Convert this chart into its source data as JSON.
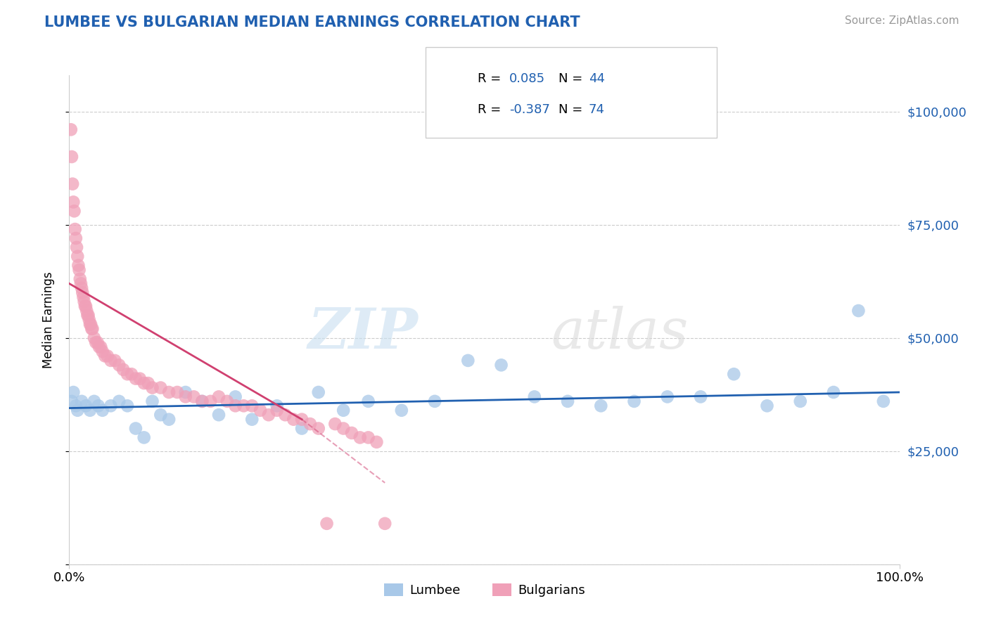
{
  "title": "LUMBEE VS BULGARIAN MEDIAN EARNINGS CORRELATION CHART",
  "source": "Source: ZipAtlas.com",
  "ylabel": "Median Earnings",
  "legend1_label": "Lumbee",
  "legend2_label": "Bulgarians",
  "r_lumbee": 0.085,
  "n_lumbee": 44,
  "r_bulgarian": -0.387,
  "n_bulgarian": 74,
  "lumbee_color": "#a8c8e8",
  "bulgarian_color": "#f0a0b8",
  "lumbee_line_color": "#2060b0",
  "bulgarian_line_color": "#d04070",
  "title_color": "#2060b0",
  "source_color": "#999999",
  "lumbee_x": [
    0.3,
    0.5,
    0.8,
    1.0,
    1.5,
    2.0,
    2.5,
    3.0,
    3.5,
    4.0,
    5.0,
    6.0,
    7.0,
    8.0,
    9.0,
    10.0,
    11.0,
    12.0,
    14.0,
    16.0,
    18.0,
    20.0,
    22.0,
    25.0,
    28.0,
    30.0,
    33.0,
    36.0,
    40.0,
    44.0,
    48.0,
    52.0,
    56.0,
    60.0,
    64.0,
    68.0,
    72.0,
    76.0,
    80.0,
    84.0,
    88.0,
    92.0,
    95.0,
    98.0
  ],
  "lumbee_y": [
    36000,
    38000,
    35000,
    34000,
    36000,
    35000,
    34000,
    36000,
    35000,
    34000,
    35000,
    36000,
    35000,
    30000,
    28000,
    36000,
    33000,
    32000,
    38000,
    36000,
    33000,
    37000,
    32000,
    35000,
    30000,
    38000,
    34000,
    36000,
    34000,
    36000,
    45000,
    44000,
    37000,
    36000,
    35000,
    36000,
    37000,
    37000,
    42000,
    35000,
    36000,
    38000,
    56000,
    36000
  ],
  "bulgarian_x": [
    0.2,
    0.3,
    0.4,
    0.5,
    0.6,
    0.7,
    0.8,
    0.9,
    1.0,
    1.1,
    1.2,
    1.3,
    1.4,
    1.5,
    1.6,
    1.7,
    1.8,
    1.9,
    2.0,
    2.1,
    2.2,
    2.3,
    2.4,
    2.5,
    2.6,
    2.7,
    2.8,
    3.0,
    3.2,
    3.4,
    3.6,
    3.8,
    4.0,
    4.3,
    4.6,
    5.0,
    5.5,
    6.0,
    6.5,
    7.0,
    7.5,
    8.0,
    8.5,
    9.0,
    9.5,
    10.0,
    11.0,
    12.0,
    13.0,
    14.0,
    15.0,
    16.0,
    17.0,
    18.0,
    19.0,
    20.0,
    21.0,
    22.0,
    23.0,
    24.0,
    25.0,
    26.0,
    27.0,
    28.0,
    29.0,
    30.0,
    31.0,
    32.0,
    33.0,
    34.0,
    35.0,
    36.0,
    37.0,
    38.0
  ],
  "bulgarian_y": [
    96000,
    90000,
    84000,
    80000,
    78000,
    74000,
    72000,
    70000,
    68000,
    66000,
    65000,
    63000,
    62000,
    61000,
    60000,
    59000,
    58000,
    57000,
    57000,
    56000,
    55000,
    55000,
    54000,
    53000,
    53000,
    52000,
    52000,
    50000,
    49000,
    49000,
    48000,
    48000,
    47000,
    46000,
    46000,
    45000,
    45000,
    44000,
    43000,
    42000,
    42000,
    41000,
    41000,
    40000,
    40000,
    39000,
    39000,
    38000,
    38000,
    37000,
    37000,
    36000,
    36000,
    37000,
    36000,
    35000,
    35000,
    35000,
    34000,
    33000,
    34000,
    33000,
    32000,
    32000,
    31000,
    30000,
    9000,
    31000,
    30000,
    29000,
    28000,
    28000,
    27000,
    9000
  ]
}
